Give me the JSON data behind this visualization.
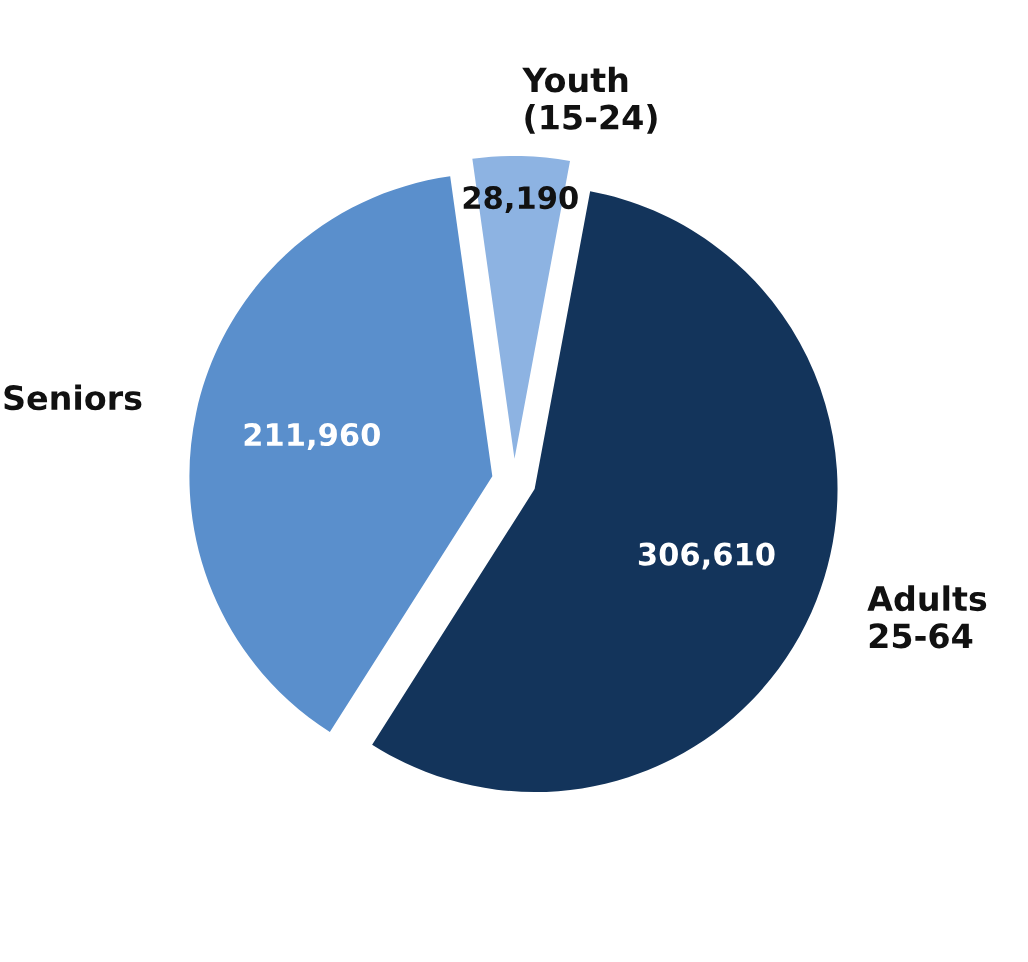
{
  "chart_data": {
    "type": "pie",
    "categories": [
      "Youth\n(15-24)",
      "Adults\n25-64",
      "Seniors"
    ],
    "values": [
      28190,
      306610,
      211960
    ],
    "value_labels": [
      "28,190",
      "306,610",
      "211,960"
    ],
    "colors": [
      "#8db3e2",
      "#13345b",
      "#5a8fcc"
    ],
    "legend": false
  }
}
